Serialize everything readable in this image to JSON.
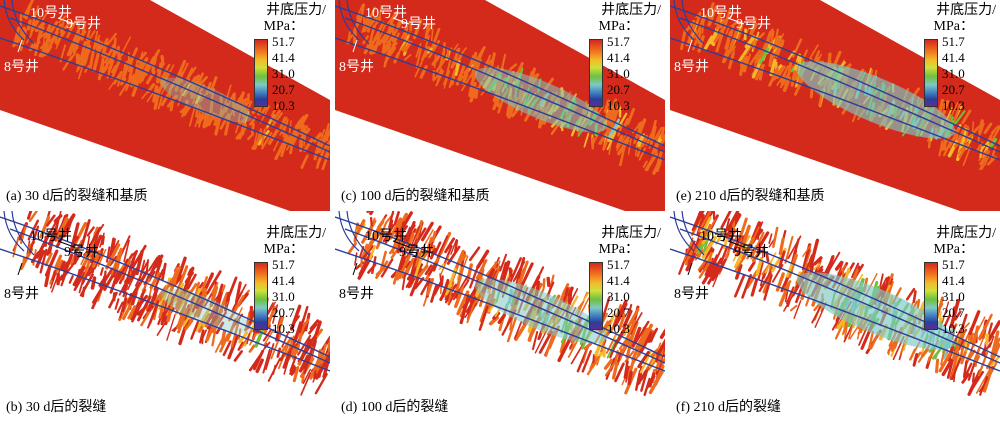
{
  "legend": {
    "title_line1": "井底压力/",
    "title_line2": "MPa：",
    "ticks": [
      "51.7",
      "41.4",
      "31.0",
      "20.7",
      "10.3"
    ]
  },
  "wells": {
    "w10": "10号井",
    "w9": "9号井",
    "w8": "8号井"
  },
  "panels": [
    {
      "caption": "(a) 30 d后的裂缝和基质",
      "days": 30,
      "type": "matrix"
    },
    {
      "caption": "(c) 100 d后的裂缝和基质",
      "days": 100,
      "type": "matrix"
    },
    {
      "caption": "(e) 210 d后的裂缝和基质",
      "days": 210,
      "type": "matrix"
    },
    {
      "caption": "(b) 30 d后的裂缝",
      "days": 30,
      "type": "fracture"
    },
    {
      "caption": "(d) 100 d后的裂缝",
      "days": 100,
      "type": "fracture"
    },
    {
      "caption": "(f) 210 d后的裂缝",
      "days": 210,
      "type": "fracture"
    }
  ],
  "colors": {
    "high": "#d42a1c",
    "orange": "#ee6a1d",
    "yellow": "#f4b82a",
    "green": "#6fc03c",
    "cyan": "#7ec8c4",
    "blue": "#3f7fc4",
    "well_line": "#2b3e9a"
  }
}
